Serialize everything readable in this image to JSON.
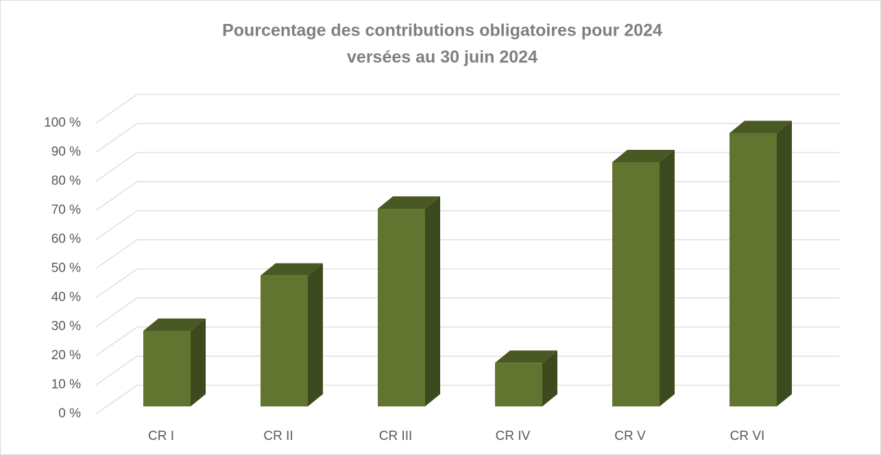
{
  "chart_data": {
    "type": "bar3d",
    "title": [
      "Pourcentage des contributions obligatoires pour 2024",
      "versées au 30 juin 2024"
    ],
    "categories": [
      "CR I",
      "CR II",
      "CR III",
      "CR IV",
      "CR V",
      "CR VI"
    ],
    "values": [
      26,
      45,
      68,
      15,
      84,
      94
    ],
    "color": "#617530",
    "ylim": [
      0,
      100
    ],
    "yticks": [
      {
        "value": 0,
        "label": "0 %"
      },
      {
        "value": 10,
        "label": "10 %"
      },
      {
        "value": 20,
        "label": "20 %"
      },
      {
        "value": 30,
        "label": "30 %"
      },
      {
        "value": 40,
        "label": "40 %"
      },
      {
        "value": 50,
        "label": "50 %"
      },
      {
        "value": 60,
        "label": "60 %"
      },
      {
        "value": 70,
        "label": "70 %"
      },
      {
        "value": 80,
        "label": "80 %"
      },
      {
        "value": 90,
        "label": "90 %"
      },
      {
        "value": 100,
        "label": "100 %"
      }
    ],
    "grid": true
  }
}
